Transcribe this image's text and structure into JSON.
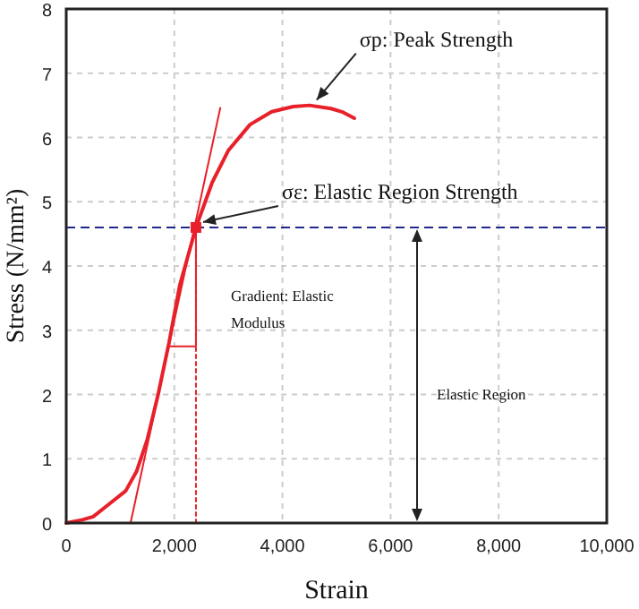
{
  "chart_data": {
    "type": "line",
    "xlabel": "Strain",
    "ylabel": "Stress (N/mm²)",
    "xlim": [
      0,
      10000
    ],
    "ylim": [
      0,
      8
    ],
    "xticks": [
      {
        "value": 0,
        "label": "0"
      },
      {
        "value": 2000,
        "label": "2,000"
      },
      {
        "value": 4000,
        "label": "4,000"
      },
      {
        "value": 6000,
        "label": "6,000"
      },
      {
        "value": 8000,
        "label": "8,000"
      },
      {
        "value": 10000,
        "label": "10,000"
      }
    ],
    "yticks": [
      0,
      1,
      2,
      3,
      4,
      5,
      6,
      7,
      8
    ],
    "grid": true,
    "series": [
      {
        "color": "#e8202a",
        "x": [
          0,
          300,
          500,
          800,
          1100,
          1300,
          1500,
          1700,
          1900,
          2100,
          2300,
          2400,
          2700,
          3000,
          3400,
          3800,
          4200,
          4500,
          4900,
          5100,
          5330
        ],
        "values": [
          0,
          0.05,
          0.1,
          0.3,
          0.5,
          0.8,
          1.3,
          2.0,
          2.8,
          3.7,
          4.3,
          4.6,
          5.3,
          5.8,
          6.2,
          6.4,
          6.48,
          6.5,
          6.45,
          6.4,
          6.3
        ]
      },
      {
        "type": "line",
        "color": "#e8202a",
        "x": [
          1190,
          2850
        ],
        "values": [
          0,
          6.46
        ]
      },
      {
        "type": "line",
        "color": "#e8202a",
        "x": [
          1920,
          2400,
          2400
        ],
        "values": [
          2.75,
          2.75,
          4.6
        ]
      },
      {
        "type": "line",
        "color": "#e8202a",
        "line_style": "dotted",
        "x": [
          2400,
          2400
        ],
        "values": [
          0,
          4.6
        ]
      },
      {
        "type": "scatter",
        "color": "#e8202a",
        "marker": "square",
        "x": [
          2400
        ],
        "values": [
          4.6
        ]
      }
    ],
    "ref_lines": [
      {
        "axis": "y",
        "value": 4.6,
        "color": "#1f2a8c",
        "line_style": "dashed"
      }
    ],
    "annotations": [
      {
        "text": "σp: Peak Strength",
        "x": 4500,
        "y": 6.5
      },
      {
        "text": "σε: Elastic Region Strength",
        "x": 2400,
        "y": 4.6
      },
      "Gradient: Elastic Modulus",
      "Elastic Region"
    ]
  }
}
